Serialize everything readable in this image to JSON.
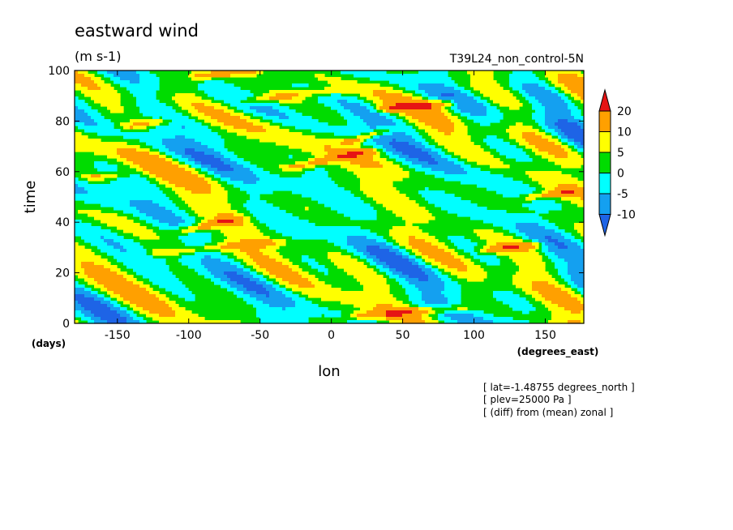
{
  "chart_data": {
    "type": "heatmap",
    "title": "eastward wind",
    "subtitle": "(m s-1)",
    "run_label": "T39L24_non_control-5N",
    "xlabel": "lon",
    "xunit": "(degrees_east)",
    "ylabel": "time",
    "yunit": "(days)",
    "xlim": [
      -180,
      177
    ],
    "ylim": [
      0,
      100
    ],
    "xticks": [
      {
        "value": -150,
        "label": "-150"
      },
      {
        "value": -100,
        "label": "-100"
      },
      {
        "value": -50,
        "label": "-50"
      },
      {
        "value": 0,
        "label": "0"
      },
      {
        "value": 50,
        "label": "50"
      },
      {
        "value": 100,
        "label": "100"
      },
      {
        "value": 150,
        "label": "150"
      }
    ],
    "yticks": [
      {
        "value": 0,
        "label": "0"
      },
      {
        "value": 20,
        "label": "20"
      },
      {
        "value": 40,
        "label": "40"
      },
      {
        "value": 60,
        "label": "60"
      },
      {
        "value": 80,
        "label": "80"
      },
      {
        "value": 100,
        "label": "100"
      }
    ],
    "levels": [
      -10,
      -5,
      0,
      5,
      10,
      20
    ],
    "level_labels": [
      "20",
      "10",
      "5",
      "0",
      "-5",
      "-10"
    ],
    "colors": [
      "#1e64e6",
      "#14a0f0",
      "#00ffff",
      "#00dc00",
      "#ffff00",
      "#ffa000",
      "#e61414"
    ],
    "streaks": [
      {
        "lon0": -90,
        "t0": 98,
        "lon1": -60,
        "t1": 100,
        "strength": 14
      },
      {
        "lon0": 40,
        "t0": 85,
        "lon1": 80,
        "t1": 87,
        "strength": 14
      },
      {
        "lon0": -140,
        "t0": 78,
        "lon1": -120,
        "t1": 80,
        "strength": 10
      },
      {
        "lon0": 15,
        "t0": 72,
        "lon1": 35,
        "t1": 76,
        "strength": 12
      },
      {
        "lon0": -25,
        "t0": 62,
        "lon1": 25,
        "t1": 68,
        "strength": 12
      },
      {
        "lon0": -165,
        "t0": 58,
        "lon1": -150,
        "t1": 59,
        "strength": 10
      },
      {
        "lon0": 140,
        "t0": 50,
        "lon1": 165,
        "t1": 52,
        "strength": 12
      },
      {
        "lon0": -100,
        "t0": 37,
        "lon1": -70,
        "t1": 41,
        "strength": 13
      },
      {
        "lon0": 110,
        "t0": 29,
        "lon1": 140,
        "t1": 31,
        "strength": 12
      },
      {
        "lon0": 20,
        "t0": 3,
        "lon1": 90,
        "t1": 6,
        "strength": 12
      },
      {
        "lon0": -120,
        "t0": 28,
        "lon1": -40,
        "t1": 32,
        "strength": 8
      },
      {
        "lon0": -60,
        "t0": 88,
        "lon1": 0,
        "t1": 92,
        "strength": 8
      }
    ],
    "legend_placement": "right"
  },
  "annotations": [
    "[ lat=-1.48755 degrees_north ]",
    "[ plev=25000 Pa ]",
    "[ (diff) from (mean) zonal ]"
  ]
}
